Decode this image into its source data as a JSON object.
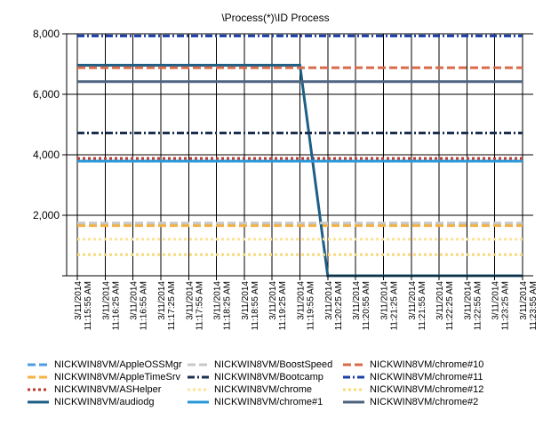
{
  "chart_data": {
    "type": "line",
    "title": "\\Process(*)\\ID Process",
    "xlabel": "",
    "ylabel": "",
    "ylim": [
      0,
      8000
    ],
    "yticks": [
      0,
      2000,
      4000,
      6000,
      8000
    ],
    "ytick_labels": [
      "",
      "2,000",
      "4,000",
      "6,000",
      "8,000"
    ],
    "grid": true,
    "legend_position": "bottom",
    "x": [
      "3/11/2014 11:15:55 AM",
      "3/11/2014 11:16:25 AM",
      "3/11/2014 11:16:55 AM",
      "3/11/2014 11:17:25 AM",
      "3/11/2014 11:17:55 AM",
      "3/11/2014 11:18:25 AM",
      "3/11/2014 11:18:55 AM",
      "3/11/2014 11:19:25 AM",
      "3/11/2014 11:19:55 AM",
      "3/11/2014 11:20:25 AM",
      "3/11/2014 11:20:55 AM",
      "3/11/2014 11:21:25 AM",
      "3/11/2014 11:21:55 AM",
      "3/11/2014 11:22:25 AM",
      "3/11/2014 11:22:55 AM",
      "3/11/2014 11:23:25 AM",
      "3/11/2014 11:23:55 AM"
    ],
    "x_label_lines": [
      [
        "3/11/2014",
        "11:15:55 AM"
      ],
      [
        "3/11/2014",
        "11:16:25 AM"
      ],
      [
        "3/11/2014",
        "11:16:55 AM"
      ],
      [
        "3/11/2014",
        "11:17:25 AM"
      ],
      [
        "3/11/2014",
        "11:17:55 AM"
      ],
      [
        "3/11/2014",
        "11:18:25 AM"
      ],
      [
        "3/11/2014",
        "11:18:55 AM"
      ],
      [
        "3/11/2014",
        "11:19:25 AM"
      ],
      [
        "3/11/2014",
        "11:19:55 AM"
      ],
      [
        "3/11/2014",
        "11:20:25 AM"
      ],
      [
        "3/11/2014",
        "11:20:55 AM"
      ],
      [
        "3/11/2014",
        "11:21:25 AM"
      ],
      [
        "3/11/2014",
        "11:21:55 AM"
      ],
      [
        "3/11/2014",
        "11:22:25 AM"
      ],
      [
        "3/11/2014",
        "11:22:55 AM"
      ],
      [
        "3/11/2014",
        "11:23:25 AM"
      ],
      [
        "3/11/2014",
        "11:23:55 AM"
      ]
    ],
    "series": [
      {
        "name": "NICKWIN8VM/AppleOSSMgr",
        "color": "#4f9ce0",
        "dash": "dash",
        "values": [
          1710,
          1710,
          1710,
          1710,
          1710,
          1710,
          1710,
          1710,
          1710,
          1710,
          1710,
          1710,
          1710,
          1710,
          1710,
          1710,
          1710
        ]
      },
      {
        "name": "NICKWIN8VM/AppleTimeSrv",
        "color": "#f5b142",
        "dash": "dash",
        "values": [
          1660,
          1660,
          1660,
          1660,
          1660,
          1660,
          1660,
          1660,
          1660,
          1660,
          1660,
          1660,
          1660,
          1660,
          1660,
          1660,
          1660
        ]
      },
      {
        "name": "NICKWIN8VM/ASHelper",
        "color": "#c0392b",
        "dash": "dot",
        "values": [
          3880,
          3880,
          3880,
          3880,
          3880,
          3880,
          3880,
          3880,
          3880,
          3880,
          3880,
          3880,
          3880,
          3880,
          3880,
          3880,
          3880
        ]
      },
      {
        "name": "NICKWIN8VM/audiodg",
        "color": "#1f5f85",
        "dash": "solid",
        "values": [
          6960,
          6960,
          6960,
          6960,
          6960,
          6960,
          6960,
          6960,
          6960,
          0,
          0,
          0,
          0,
          0,
          0,
          0,
          0
        ]
      },
      {
        "name": "NICKWIN8VM/BoostSpeed",
        "color": "#c8c8c8",
        "dash": "dash",
        "values": [
          1740,
          1740,
          1740,
          1740,
          1740,
          1740,
          1740,
          1740,
          1740,
          1740,
          1740,
          1740,
          1740,
          1740,
          1740,
          1740,
          1740
        ]
      },
      {
        "name": "NICKWIN8VM/Bootcamp",
        "color": "#1c2f50",
        "dash": "dashdot",
        "values": [
          4720,
          4720,
          4720,
          4720,
          4720,
          4720,
          4720,
          4720,
          4720,
          4720,
          4720,
          4720,
          4720,
          4720,
          4720,
          4720,
          4720
        ]
      },
      {
        "name": "NICKWIN8VM/chrome",
        "color": "#fde39a",
        "dash": "dot",
        "values": [
          1210,
          1210,
          1210,
          1210,
          1210,
          1210,
          1210,
          1210,
          1210,
          1210,
          1210,
          1210,
          1210,
          1210,
          1210,
          1210,
          1210
        ]
      },
      {
        "name": "NICKWIN8VM/chrome#1",
        "color": "#2a98d8",
        "dash": "solid",
        "values": [
          3790,
          3790,
          3790,
          3790,
          3790,
          3790,
          3790,
          3790,
          3790,
          3790,
          3790,
          3790,
          3790,
          3790,
          3790,
          3790,
          3790
        ]
      },
      {
        "name": "NICKWIN8VM/chrome#10",
        "color": "#d96a4a",
        "dash": "dash",
        "values": [
          6880,
          6880,
          6880,
          6880,
          6880,
          6880,
          6880,
          6880,
          6880,
          6880,
          6880,
          6880,
          6880,
          6880,
          6880,
          6880,
          6880
        ]
      },
      {
        "name": "NICKWIN8VM/chrome#11",
        "color": "#1c3ea8",
        "dash": "dashdot",
        "values": [
          7930,
          7930,
          7930,
          7930,
          7930,
          7930,
          7930,
          7930,
          7930,
          7930,
          7930,
          7930,
          7930,
          7930,
          7930,
          7930,
          7930
        ]
      },
      {
        "name": "NICKWIN8VM/chrome#12",
        "color": "#fbd97a",
        "dash": "dot",
        "values": [
          700,
          700,
          700,
          700,
          700,
          700,
          700,
          700,
          700,
          700,
          700,
          700,
          700,
          700,
          700,
          700,
          700
        ]
      },
      {
        "name": "NICKWIN8VM/chrome#2",
        "color": "#4d6480",
        "dash": "solid",
        "values": [
          6420,
          6420,
          6420,
          6420,
          6420,
          6420,
          6420,
          6420,
          6420,
          6420,
          6420,
          6420,
          6420,
          6420,
          6420,
          6420,
          6420
        ]
      }
    ]
  }
}
